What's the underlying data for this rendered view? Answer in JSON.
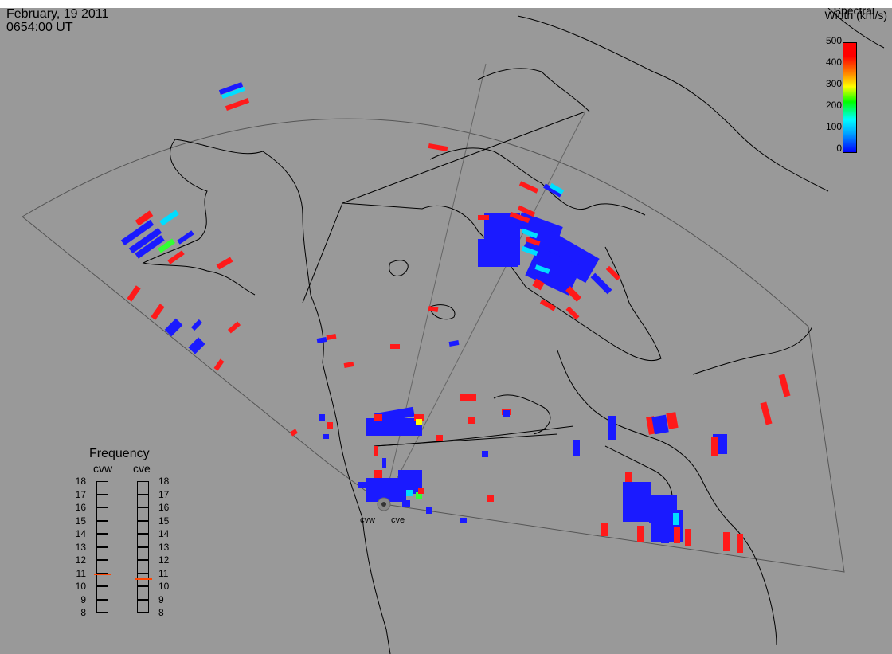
{
  "header": {
    "date": "February, 19 2011",
    "time": "0654:00 UT"
  },
  "colorbar": {
    "title_line1": "Spectral",
    "title_line2": "Width (km/s)",
    "ticks": [
      "500",
      "400",
      "300",
      "200",
      "100",
      "0"
    ],
    "range": [
      0,
      500
    ],
    "colors": [
      "#0000ff",
      "#00aaff",
      "#00ffff",
      "#00ff00",
      "#ffff00",
      "#ff8800",
      "#ff0000"
    ]
  },
  "frequency_panel": {
    "title": "Frequency",
    "radars": [
      {
        "name": "cvw",
        "value": 11
      },
      {
        "name": "cve",
        "value": 10.6
      }
    ],
    "scale_labels": [
      "18",
      "17",
      "16",
      "15",
      "14",
      "13",
      "12",
      "11",
      "10",
      "9",
      "8"
    ],
    "range": [
      8,
      18
    ],
    "indicator_color": "#ff4400"
  },
  "radar_sites": [
    {
      "name": "cvw"
    },
    {
      "name": "cve"
    }
  ],
  "colors": {
    "background": "#999999",
    "low_width": "#1a1aff",
    "high_width": "#ff1a1a",
    "mid_cyan": "#00ddff",
    "mid_green": "#33ff33"
  }
}
